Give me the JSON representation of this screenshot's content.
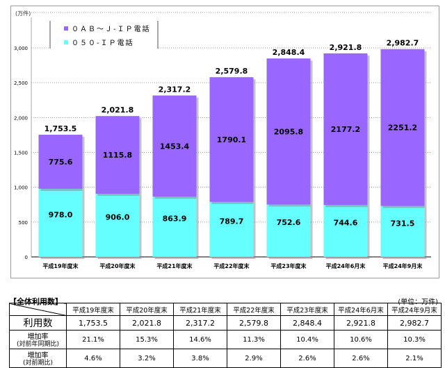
{
  "chart_data": {
    "type": "bar",
    "stacked": true,
    "unit_label": "(万件)",
    "categories": [
      "平成19年度末",
      "平成20年度末",
      "平成21年度末",
      "平成22年度末",
      "平成23年度末",
      "平成24年6月末",
      "平成24年9月末"
    ],
    "series": [
      {
        "name": "０５０-ＩＰ電話",
        "color": "#66FFFF",
        "values": [
          978.0,
          906.0,
          863.9,
          789.7,
          752.6,
          744.6,
          731.5
        ]
      },
      {
        "name": "０ＡＢ～Ｊ-ＩＰ電話",
        "color": "#9966FF",
        "values": [
          775.6,
          1115.8,
          1453.4,
          1790.1,
          2095.8,
          2177.2,
          2251.2
        ]
      }
    ],
    "totals": [
      "1,753.5",
      "2,021.8",
      "2,317.2",
      "2,579.8",
      "2,848.4",
      "2,921.8",
      "2,982.7"
    ],
    "ylim": [
      0,
      3000
    ],
    "yticks": [
      "0",
      "500",
      "1,000",
      "1,500",
      "2,000",
      "2,500",
      "3,000"
    ],
    "grid": true,
    "legend": "top-left"
  },
  "table": {
    "title": "【全体利用数】",
    "unit": "(単位：万件)",
    "headers": [
      "平成19年度末",
      "平成20年度末",
      "平成21年度末",
      "平成22年度末",
      "平成23年度末",
      "平成24年6月末",
      "平成24年9月末"
    ],
    "rows": [
      {
        "label": "利用数",
        "sub": "",
        "values": [
          "1,753.5",
          "2,021.8",
          "2,317.2",
          "2,579.8",
          "2,848.4",
          "2,921.8",
          "2,982.7"
        ]
      },
      {
        "label": "増加率",
        "sub": "(対前年同期比)",
        "values": [
          "21.1%",
          "15.3%",
          "14.6%",
          "11.3%",
          "10.4%",
          "10.6%",
          "10.3%"
        ]
      },
      {
        "label": "増加率",
        "sub": "(対前期比)",
        "values": [
          "4.6%",
          "3.2%",
          "3.8%",
          "2.9%",
          "2.6%",
          "2.6%",
          "2.1%"
        ]
      }
    ]
  }
}
